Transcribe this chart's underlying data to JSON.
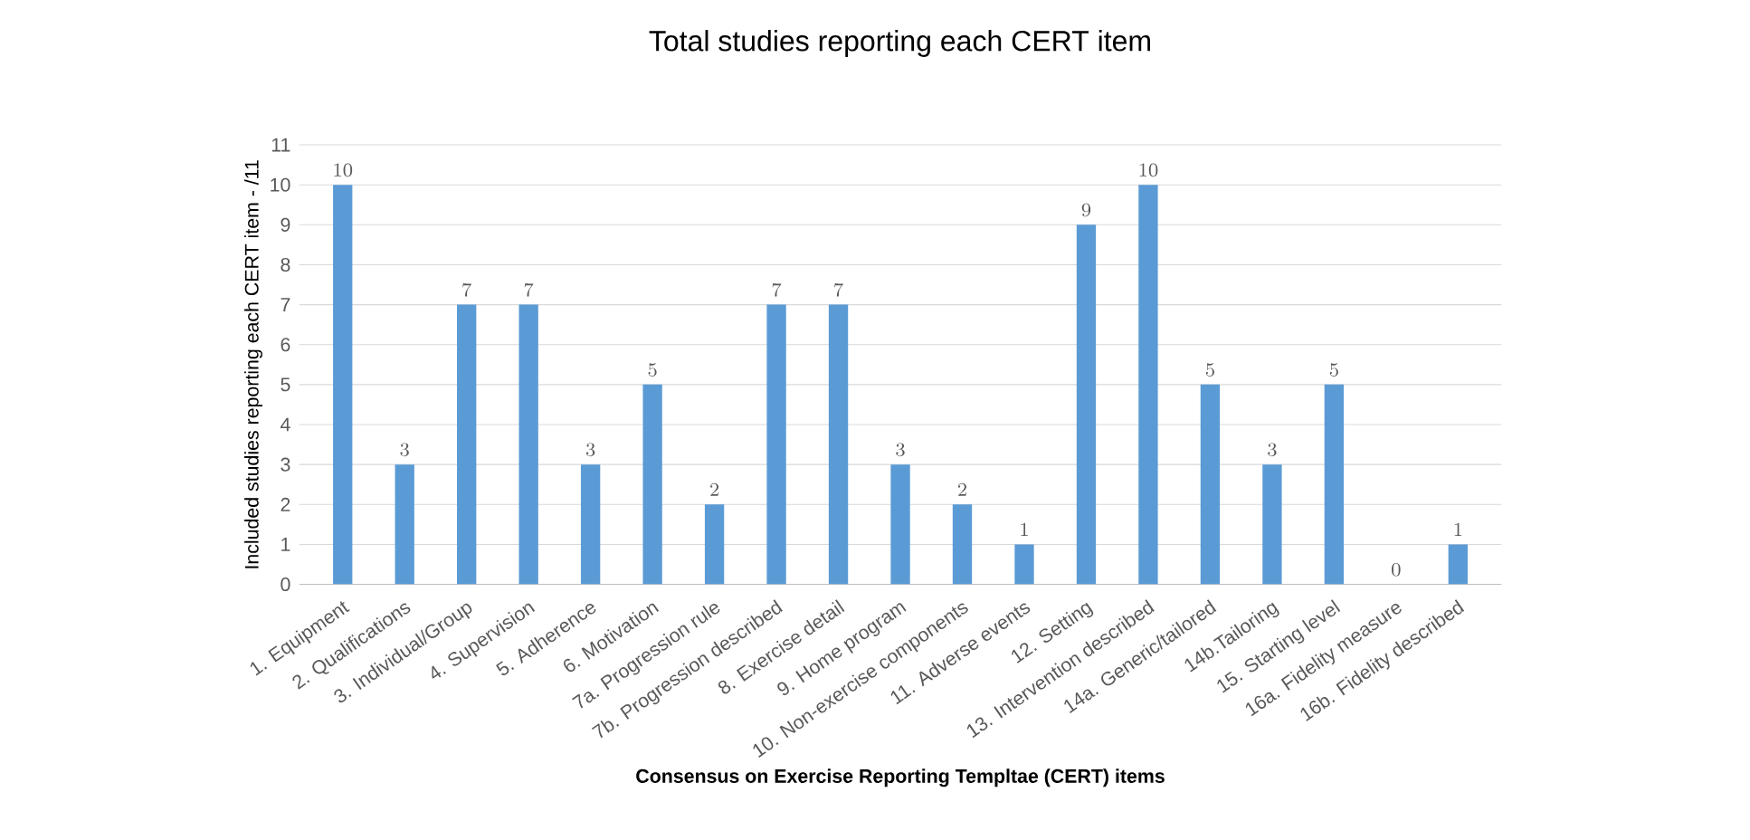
{
  "chart_data": {
    "type": "bar",
    "title": "Total studies reporting each CERT item",
    "xlabel": "Consensus on Exercise Reporting Templtae (CERT) items",
    "ylabel": "Included studies reporting each CERT item  - /11",
    "categories": [
      "1. Equipment",
      "2. Qualifications",
      "3. Individual/Group",
      "4. Supervision",
      "5. Adherence",
      "6. Motivation",
      "7a. Progression rule",
      "7b. Progression described",
      "8. Exercise detail",
      "9. Home program",
      "10. Non-exercise components",
      "11. Adverse events",
      "12. Setting",
      "13. Intervention described",
      "14a. Generic/tailored",
      "14b.Tailoring",
      "15. Starting level",
      "16a. Fidelity measure",
      "16b. Fidelity described"
    ],
    "values": [
      10,
      3,
      7,
      7,
      3,
      5,
      2,
      7,
      7,
      3,
      2,
      1,
      9,
      10,
      5,
      3,
      5,
      0,
      1
    ],
    "color": "#5b9bd5",
    "ylim": [
      0,
      11
    ],
    "yticks": [
      0,
      1,
      2,
      3,
      4,
      5,
      6,
      7,
      8,
      9,
      10,
      11
    ],
    "grid": "y",
    "data_labels": true
  }
}
